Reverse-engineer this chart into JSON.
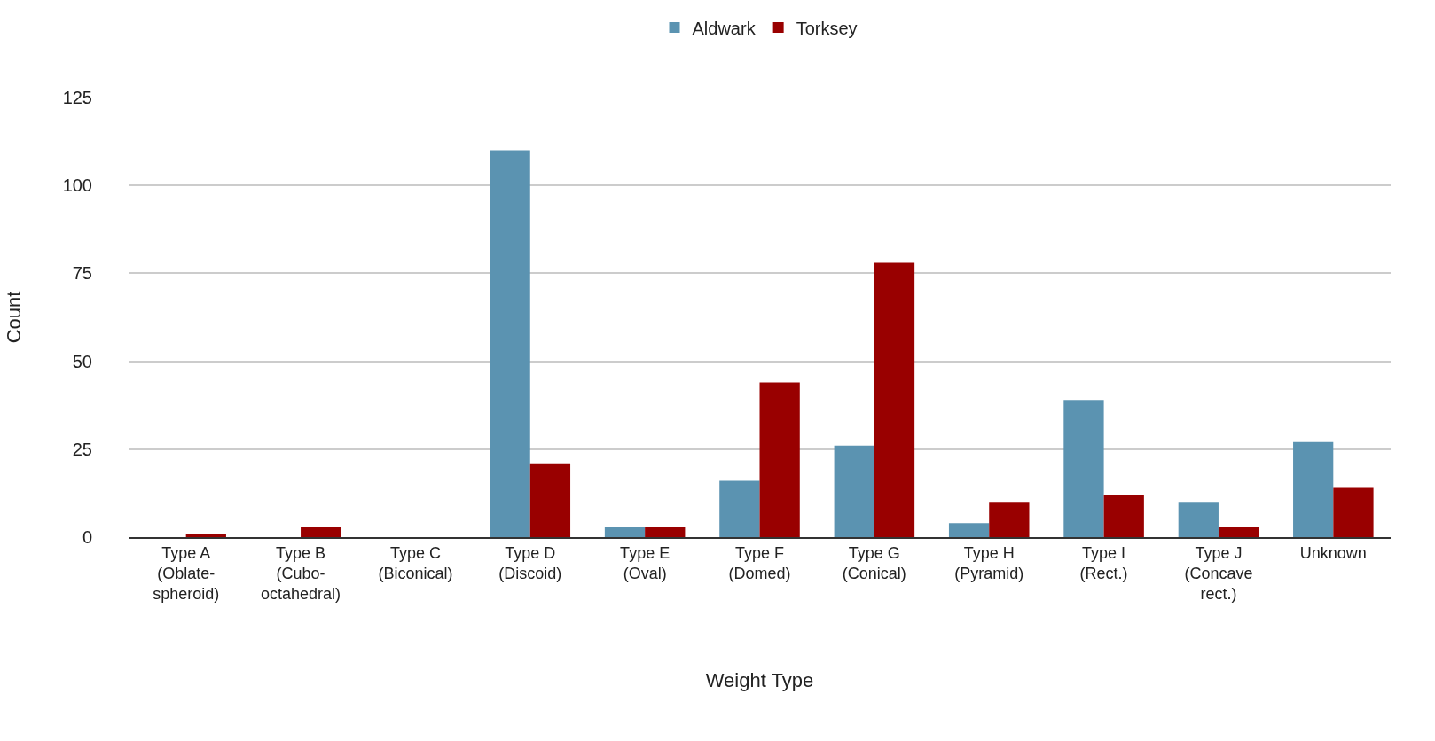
{
  "chart_data": {
    "type": "bar",
    "xlabel": "Weight Type",
    "ylabel": "Count",
    "categories": [
      "Type A\n(Oblate-\nspheroid)",
      "Type B\n(Cubo-\noctahedral)",
      "Type C\n(Biconical)",
      "Type D\n(Discoid)",
      "Type E\n(Oval)",
      "Type F\n(Domed)",
      "Type G\n(Conical)",
      "Type H\n(Pyramid)",
      "Type I\n(Rect.)",
      "Type J\n(Concave\nrect.)",
      "Unknown"
    ],
    "series": [
      {
        "name": "Aldwark",
        "color": "#5b93b1",
        "values": [
          0,
          0,
          0,
          110,
          3,
          16,
          26,
          4,
          39,
          10,
          27
        ]
      },
      {
        "name": "Torksey",
        "color": "#990000",
        "values": [
          1,
          3,
          0,
          21,
          3,
          44,
          78,
          10,
          12,
          3,
          14
        ]
      }
    ],
    "ylim": [
      0,
      125
    ],
    "yticks": [
      0,
      25,
      50,
      75,
      100,
      125
    ],
    "grid": "y",
    "legend": "top"
  }
}
